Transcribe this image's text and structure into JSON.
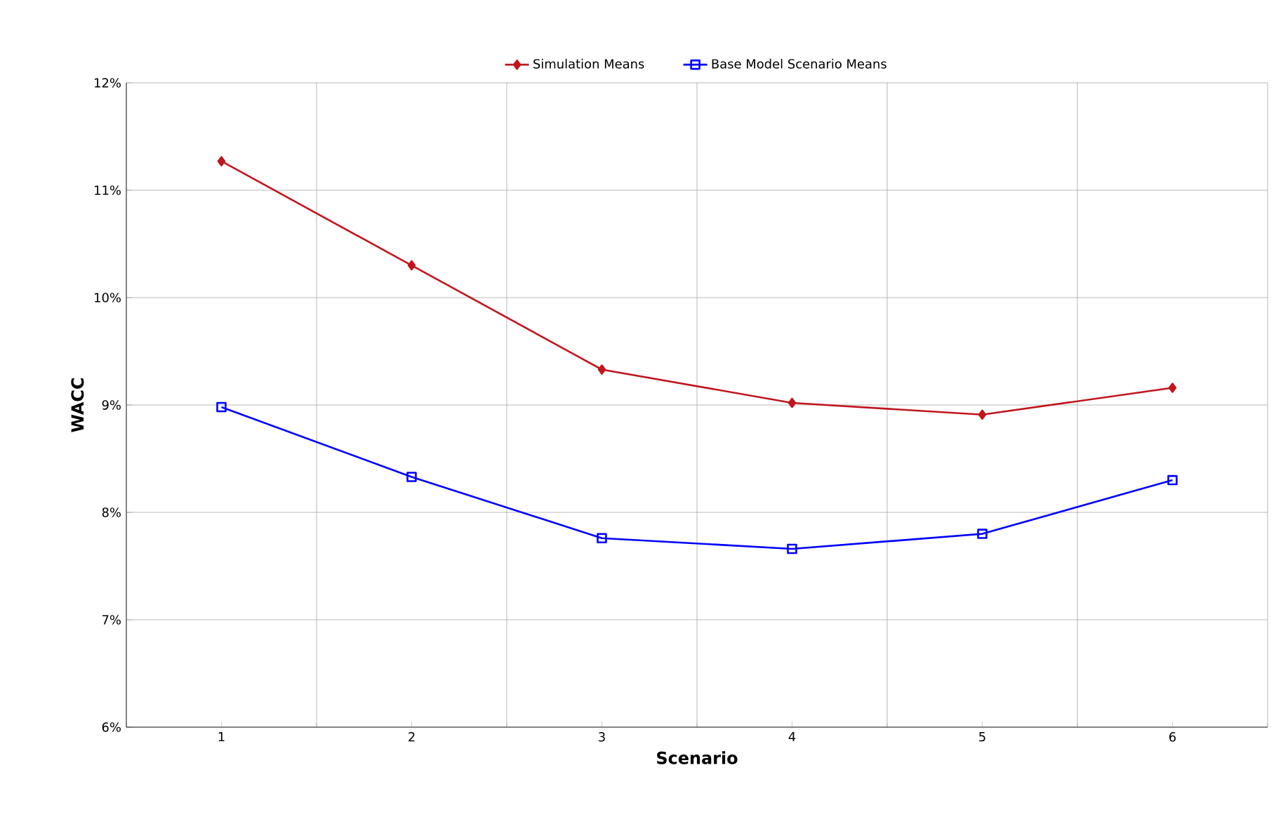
{
  "chart_data": {
    "type": "line",
    "xlabel": "Scenario",
    "ylabel": "WACC",
    "categories": [
      "1",
      "2",
      "3",
      "4",
      "5",
      "6"
    ],
    "series": [
      {
        "name": "Simulation Means",
        "color": "#c0161d",
        "marker": "diamond",
        "values": [
          11.27,
          10.3,
          9.33,
          9.02,
          8.91,
          9.16
        ]
      },
      {
        "name": "Base Model Scenario Means",
        "color": "#0000ff",
        "marker": "square",
        "values": [
          8.98,
          8.33,
          7.76,
          7.66,
          7.8,
          8.3
        ]
      }
    ],
    "ylim": [
      6,
      12
    ],
    "yticks": [
      {
        "value": 6,
        "label": "6%"
      },
      {
        "value": 7,
        "label": "7%"
      },
      {
        "value": 8,
        "label": "8%"
      },
      {
        "value": 9,
        "label": "9%"
      },
      {
        "value": 10,
        "label": "10%"
      },
      {
        "value": 11,
        "label": "11%"
      },
      {
        "value": 12,
        "label": "12%"
      }
    ],
    "grid": true,
    "legend": "top"
  }
}
